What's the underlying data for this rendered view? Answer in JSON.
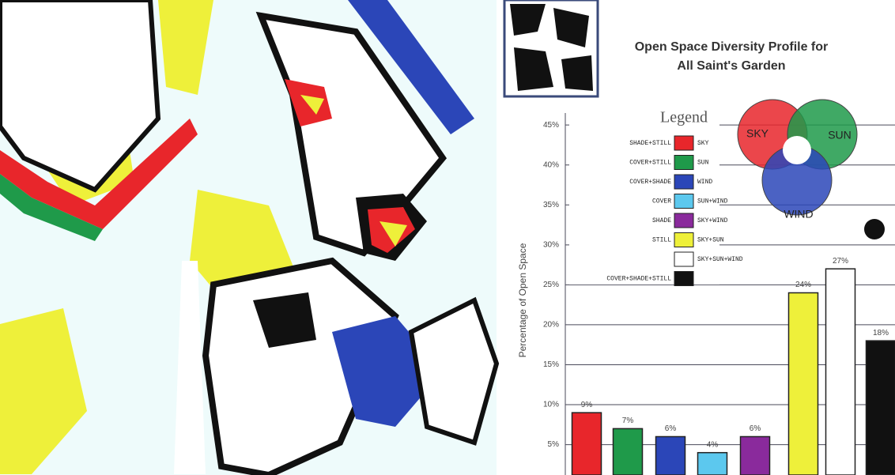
{
  "chart_data": {
    "type": "bar",
    "title": [
      "Open Space Diversity Profile for",
      "All Saint's Garden"
    ],
    "ylabel": "Percentage of Open Space",
    "categories": [
      null,
      null,
      null,
      null,
      null,
      null,
      null,
      null
    ],
    "values": [
      9,
      7,
      6,
      4,
      6,
      24,
      27,
      18
    ],
    "value_labels": [
      "9%",
      "7%",
      "6%",
      "4%",
      "6%",
      "24%",
      "27%",
      "18%"
    ],
    "colors": [
      "#e8262b",
      "#1f9a4a",
      "#2b46b8",
      "#5cc8ee",
      "#8a2a9c",
      "#eef03a",
      "#ffffff",
      "#111111"
    ],
    "ylim": [
      1.2,
      46.5
    ],
    "yticks": [
      {
        "value": 5,
        "label": "5%"
      },
      {
        "value": 10,
        "label": "10%"
      },
      {
        "value": 15,
        "label": "15%"
      },
      {
        "value": 20,
        "label": "20%"
      },
      {
        "value": 25,
        "label": "25%"
      },
      {
        "value": 30,
        "label": "30%"
      },
      {
        "value": 35,
        "label": "35%"
      },
      {
        "value": 40,
        "label": "40%"
      },
      {
        "value": 45,
        "label": "45%"
      }
    ],
    "grid": true,
    "legend": {
      "title": "Legend",
      "items": [
        {
          "left": "SHADE+STILL",
          "right": "SKY",
          "color": "#e8262b"
        },
        {
          "left": "COVER+STILL",
          "right": "SUN",
          "color": "#1f9a4a"
        },
        {
          "left": "COVER+SHADE",
          "right": "WIND",
          "color": "#2b46b8"
        },
        {
          "left": "COVER",
          "right": "SUN+WIND",
          "color": "#5cc8ee"
        },
        {
          "left": "SHADE",
          "right": "SKY+WIND",
          "color": "#8a2a9c"
        },
        {
          "left": "STILL",
          "right": "SKY+SUN",
          "color": "#eef03a"
        },
        {
          "left": null,
          "right": "SKY+SUN+WIND",
          "color": "#ffffff"
        },
        {
          "left": "COVER+SHADE+STILL",
          "right": null,
          "color": "#111111"
        }
      ]
    },
    "venn": [
      "SKY",
      "SUN",
      "WIND"
    ]
  }
}
